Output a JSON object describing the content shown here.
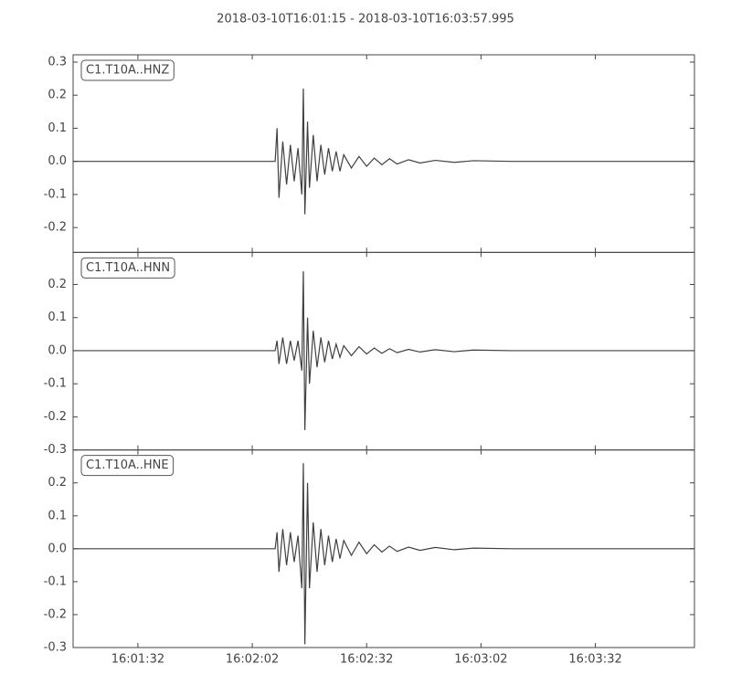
{
  "title": "2018-03-10T16:01:15  -  2018-03-10T16:03:57.995",
  "xlim": [
    57675,
    57837.995
  ],
  "xticks": [
    {
      "value": 57692,
      "label": "16:01:32"
    },
    {
      "value": 57722,
      "label": "16:02:02"
    },
    {
      "value": 57752,
      "label": "16:02:32"
    },
    {
      "value": 57782,
      "label": "16:03:02"
    },
    {
      "value": 57812,
      "label": "16:03:32"
    }
  ],
  "chart_data": [
    {
      "type": "line",
      "label": "C1.T10A..HNZ",
      "color": "#404040",
      "ylim": [
        -0.275,
        0.322
      ],
      "yticks": [
        -0.2,
        -0.1,
        {
          "value": 0,
          "label": "0.0"
        },
        0.1,
        0.2,
        0.3
      ],
      "x": [
        57675,
        57728,
        57728.5,
        57729,
        57730,
        57731,
        57732,
        57733,
        57734,
        57735,
        57735.4,
        57735.8,
        57736.5,
        57737,
        57738,
        57739,
        57740,
        57741,
        57742,
        57743,
        57744,
        57745,
        57746,
        57748,
        57750,
        57752,
        57754,
        57756,
        57758,
        57760,
        57763,
        57766,
        57770,
        57775,
        57780,
        57790,
        57837.995
      ],
      "values": [
        0,
        0,
        0.1,
        -0.11,
        0.06,
        -0.07,
        0.05,
        -0.06,
        0.04,
        -0.1,
        0.22,
        -0.16,
        0.12,
        -0.08,
        0.08,
        -0.06,
        0.05,
        -0.04,
        0.04,
        -0.03,
        0.03,
        -0.03,
        0.02,
        -0.02,
        0.015,
        -0.015,
        0.01,
        -0.01,
        0.008,
        -0.008,
        0.005,
        -0.005,
        0.003,
        -0.003,
        0.002,
        0,
        0
      ]
    },
    {
      "type": "line",
      "label": "C1.T10A..HNN",
      "color": "#404040",
      "ylim": [
        -0.3,
        0.297
      ],
      "yticks": [
        -0.3,
        -0.2,
        -0.1,
        {
          "value": 0,
          "label": "0.0"
        },
        0.1,
        0.2
      ],
      "x": [
        57675,
        57728,
        57728.5,
        57729,
        57730,
        57731,
        57732,
        57733,
        57734,
        57735,
        57735.4,
        57735.8,
        57736.5,
        57737,
        57738,
        57739,
        57740,
        57741,
        57742,
        57743,
        57744,
        57745,
        57746,
        57748,
        57750,
        57752,
        57754,
        57756,
        57758,
        57760,
        57763,
        57766,
        57770,
        57775,
        57780,
        57790,
        57837.995
      ],
      "values": [
        0,
        0,
        0.03,
        -0.04,
        0.04,
        -0.04,
        0.03,
        -0.03,
        0.03,
        -0.06,
        0.24,
        -0.24,
        0.1,
        -0.1,
        0.06,
        -0.05,
        0.04,
        -0.035,
        0.03,
        -0.025,
        0.02,
        -0.02,
        0.015,
        -0.015,
        0.012,
        -0.01,
        0.008,
        -0.008,
        0.006,
        -0.006,
        0.004,
        -0.004,
        0.003,
        -0.003,
        0.002,
        0,
        0
      ]
    },
    {
      "type": "line",
      "label": "C1.T10A..HNE",
      "color": "#404040",
      "ylim": [
        -0.3,
        0.3
      ],
      "yticks": [
        -0.3,
        -0.2,
        -0.1,
        {
          "value": 0,
          "label": "0.0"
        },
        0.1,
        0.2
      ],
      "x": [
        57675,
        57728,
        57728.5,
        57729,
        57730,
        57731,
        57732,
        57733,
        57734,
        57735,
        57735.4,
        57735.8,
        57736.5,
        57737,
        57738,
        57739,
        57740,
        57741,
        57742,
        57743,
        57744,
        57745,
        57746,
        57748,
        57750,
        57752,
        57754,
        57756,
        57758,
        57760,
        57763,
        57766,
        57770,
        57775,
        57780,
        57790,
        57837.995
      ],
      "values": [
        0,
        0,
        0.05,
        -0.07,
        0.06,
        -0.05,
        0.05,
        -0.04,
        0.04,
        -0.12,
        0.26,
        -0.29,
        0.2,
        -0.12,
        0.08,
        -0.07,
        0.06,
        -0.05,
        0.04,
        -0.04,
        0.03,
        -0.03,
        0.025,
        -0.02,
        0.02,
        -0.015,
        0.012,
        -0.01,
        0.008,
        -0.008,
        0.005,
        -0.005,
        0.004,
        -0.003,
        0.002,
        0,
        0
      ]
    }
  ]
}
